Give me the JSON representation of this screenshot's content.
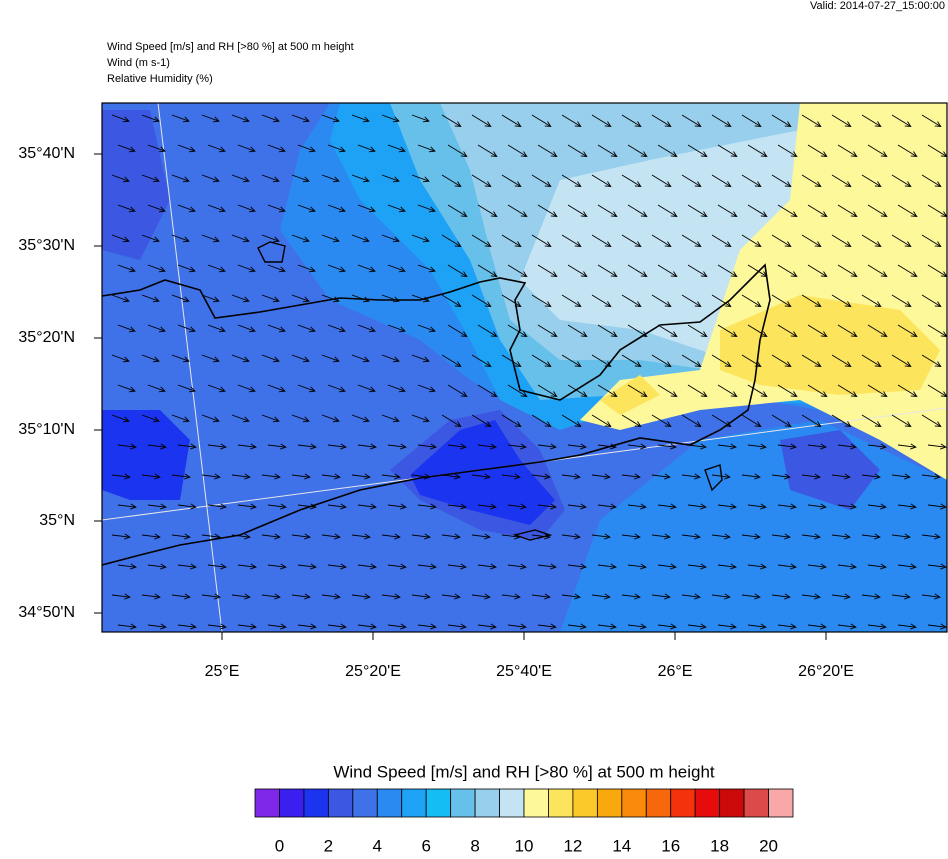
{
  "header": {
    "valid": "Valid: 2014-07-27_15:00:00",
    "lines": [
      "Wind Speed [m/s] and RH [>80 %] at 500 m height",
      "Wind   (m s-1)",
      "Relative Humidity    (%)"
    ]
  },
  "map": {
    "lat_labels": [
      "35°40'N",
      "35°30'N",
      "35°20'N",
      "35°10'N",
      "35°N",
      "34°50'N"
    ],
    "lon_labels": [
      "25°E",
      "25°20'E",
      "25°40'E",
      "26°E",
      "26°20'E"
    ]
  },
  "colorbar": {
    "title": "Wind Speed [m/s] and RH [>80 %] at 500 m height",
    "colors": [
      "#7e27e8",
      "#3b1ff0",
      "#1b34f0",
      "#3c58e2",
      "#3f71e8",
      "#2a8af2",
      "#1ea2f6",
      "#14bdf4",
      "#66c0ea",
      "#98cfec",
      "#c4e4f4",
      "#fdf89a",
      "#fce45c",
      "#fbc92a",
      "#f9a80e",
      "#f98a0c",
      "#f7670c",
      "#f4330c",
      "#e60c0c",
      "#cc0a0a",
      "#dd4a4a",
      "#f8a8a8"
    ],
    "ticks": [
      0,
      2,
      4,
      6,
      8,
      10,
      12,
      14,
      16,
      18,
      20
    ]
  }
}
